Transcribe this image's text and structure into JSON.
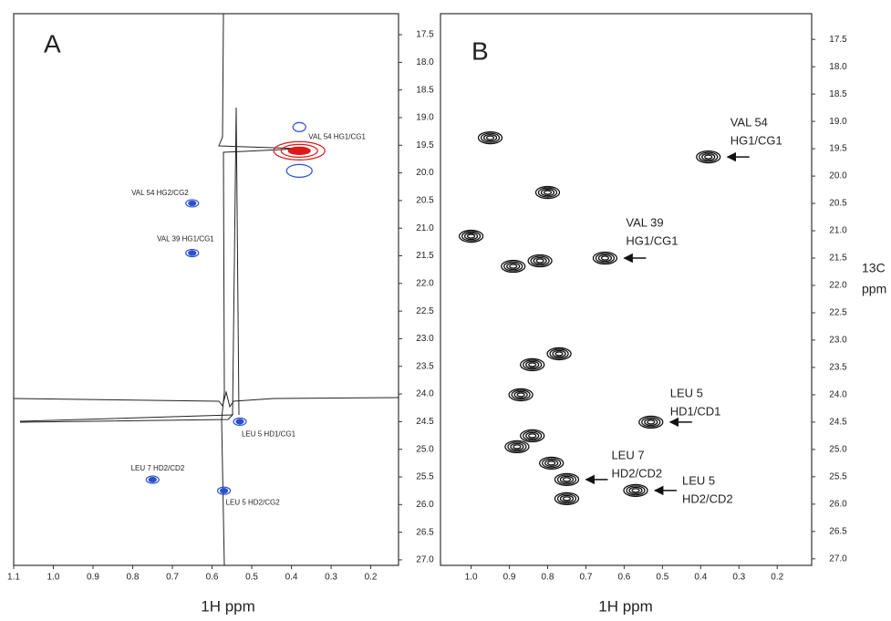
{
  "chart_data": [
    {
      "type": "scatter",
      "panel_label": "A",
      "x_label": "1H ppm",
      "x": [
        0.38,
        0.65,
        0.65,
        0.53,
        0.75,
        0.57
      ],
      "y": [
        19.6,
        20.55,
        21.45,
        24.5,
        25.55,
        25.75
      ],
      "labels": [
        "VAL 54 HG1/CG1",
        "VAL 54 HG2/CG2",
        "VAL 39 HG1/CG1",
        "LEU 5 HD1/CG1",
        "LEU 7 HD2/CD2",
        "LEU 5 HD2/CG2"
      ],
      "colors": [
        "#e01818",
        "#2a4fd0",
        "#2a4fd0",
        "#2a4fd0",
        "#2a4fd0",
        "#2a4fd0"
      ],
      "xlim": [
        1.1,
        0.13
      ],
      "ylim": [
        17.12,
        27.1
      ],
      "xticks": [
        {
          "value": 1.1,
          "label": "1.1"
        },
        {
          "value": 1.0,
          "label": "1.0"
        },
        {
          "value": 0.9,
          "label": "0.9"
        },
        {
          "value": 0.8,
          "label": "0.8"
        },
        {
          "value": 0.7,
          "label": "0.7"
        },
        {
          "value": 0.6,
          "label": "0.6"
        },
        {
          "value": 0.5,
          "label": "0.5"
        },
        {
          "value": 0.4,
          "label": "0.4"
        },
        {
          "value": 0.3,
          "label": "0.3"
        },
        {
          "value": 0.2,
          "label": "0.2"
        }
      ],
      "yticks": [
        {
          "value": 17.5,
          "label": "17.5"
        },
        {
          "value": 18,
          "label": "18.0"
        },
        {
          "value": 18.5,
          "label": "18.5"
        },
        {
          "value": 19,
          "label": "19.0"
        },
        {
          "value": 19.5,
          "label": "19.5"
        },
        {
          "value": 20,
          "label": "20.0"
        },
        {
          "value": 20.5,
          "label": "20.5"
        },
        {
          "value": 21,
          "label": "21.0"
        },
        {
          "value": 21.5,
          "label": "21.5"
        },
        {
          "value": 22,
          "label": "22.0"
        },
        {
          "value": 22.5,
          "label": "22.5"
        },
        {
          "value": 23,
          "label": "23.0"
        },
        {
          "value": 23.5,
          "label": "23.5"
        },
        {
          "value": 24,
          "label": "24.0"
        },
        {
          "value": 24.5,
          "label": "24.5"
        },
        {
          "value": 25,
          "label": "25.0"
        },
        {
          "value": 25.5,
          "label": "25.5"
        },
        {
          "value": 26,
          "label": "26.0"
        },
        {
          "value": 26.5,
          "label": "26.5"
        },
        {
          "value": 27,
          "label": "27.0"
        }
      ]
    },
    {
      "type": "scatter",
      "panel_label": "B",
      "x_label": "1H ppm",
      "y_label": [
        "13C",
        "ppm"
      ],
      "color": "#111111",
      "x": [
        0.95,
        0.38,
        0.8,
        1.0,
        0.65,
        0.82,
        0.89,
        0.77,
        0.84,
        0.87,
        0.53,
        0.84,
        0.88,
        0.79,
        0.75,
        0.57,
        0.75
      ],
      "y": [
        19.3,
        19.65,
        20.3,
        21.1,
        21.5,
        21.55,
        21.65,
        23.25,
        23.45,
        24.0,
        24.5,
        24.75,
        24.95,
        25.25,
        25.55,
        25.75,
        25.9
      ],
      "labels": [
        null,
        [
          "VAL 54",
          "HG1/CG1"
        ],
        null,
        null,
        [
          "VAL 39",
          "HG1/CG1"
        ],
        null,
        null,
        null,
        null,
        null,
        [
          "LEU 5",
          "HD1/CD1"
        ],
        null,
        null,
        null,
        [
          "LEU 7",
          "HD2/CD2"
        ],
        [
          "LEU 5",
          "HD2/CD2"
        ],
        null
      ],
      "xlim": [
        1.08,
        0.11
      ],
      "ylim": [
        17.03,
        27.12
      ],
      "xticks": [
        {
          "value": 1.0,
          "label": "1.0"
        },
        {
          "value": 0.9,
          "label": "0.9"
        },
        {
          "value": 0.8,
          "label": "0.8"
        },
        {
          "value": 0.7,
          "label": "0.7"
        },
        {
          "value": 0.6,
          "label": "0.6"
        },
        {
          "value": 0.5,
          "label": "0.5"
        },
        {
          "value": 0.4,
          "label": "0.4"
        },
        {
          "value": 0.3,
          "label": "0.3"
        },
        {
          "value": 0.2,
          "label": "0.2"
        }
      ],
      "yticks": [
        {
          "value": 17.5,
          "label": "17.5"
        },
        {
          "value": 18,
          "label": "18.0"
        },
        {
          "value": 18.5,
          "label": "18.5"
        },
        {
          "value": 19,
          "label": "19.0"
        },
        {
          "value": 19.5,
          "label": "19.5"
        },
        {
          "value": 20,
          "label": "20.0"
        },
        {
          "value": 20.5,
          "label": "20.5"
        },
        {
          "value": 21,
          "label": "21.0"
        },
        {
          "value": 21.5,
          "label": "21.5"
        },
        {
          "value": 22,
          "label": "22.0"
        },
        {
          "value": 22.5,
          "label": "22.5"
        },
        {
          "value": 23,
          "label": "23.0"
        },
        {
          "value": 23.5,
          "label": "23.5"
        },
        {
          "value": 24,
          "label": "24.0"
        },
        {
          "value": 24.5,
          "label": "24.5"
        },
        {
          "value": 25,
          "label": "25.0"
        },
        {
          "value": 25.5,
          "label": "25.5"
        },
        {
          "value": 26,
          "label": "26.0"
        },
        {
          "value": 26.5,
          "label": "26.5"
        },
        {
          "value": 27,
          "label": "27.0"
        }
      ]
    }
  ]
}
